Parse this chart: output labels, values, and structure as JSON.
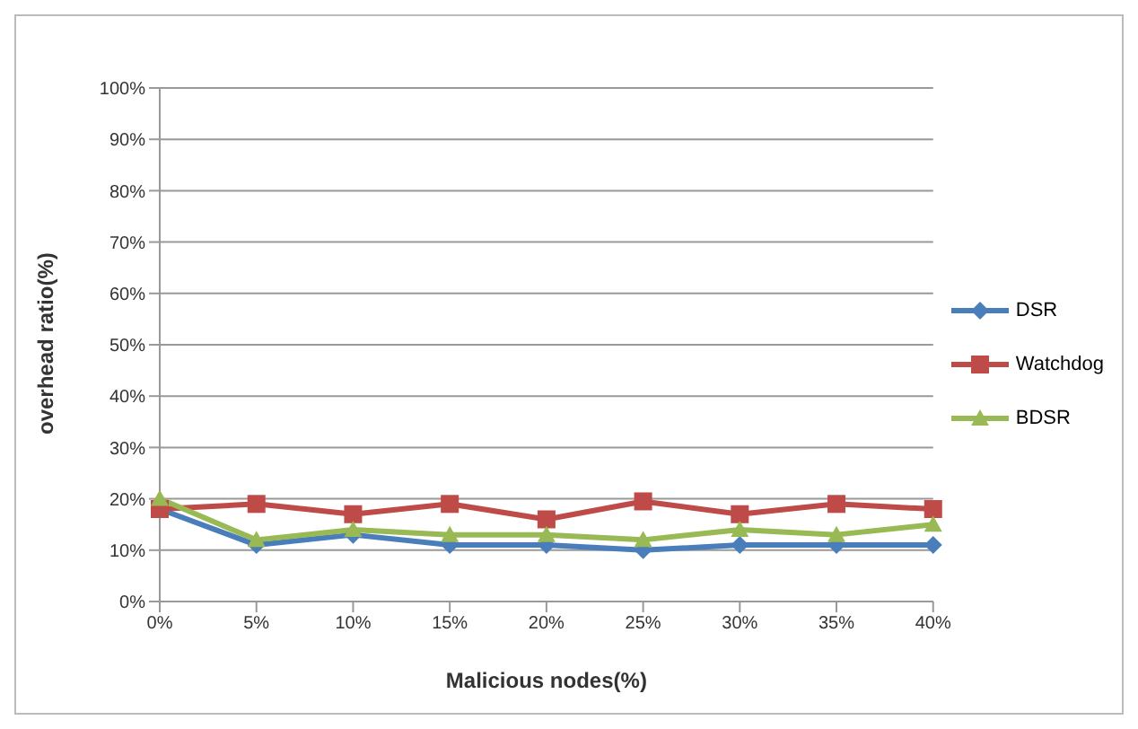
{
  "chart_data": {
    "type": "line",
    "xlabel": "Malicious nodes(%)",
    "ylabel": "overhead ratio(%)",
    "categories": [
      "0%",
      "5%",
      "10%",
      "15%",
      "20%",
      "25%",
      "30%",
      "35%",
      "40%"
    ],
    "series": [
      {
        "name": "DSR",
        "color": "#4a7ebb",
        "marker": "diamond",
        "values": [
          18,
          11,
          13,
          11,
          11,
          10,
          11,
          11,
          11
        ]
      },
      {
        "name": "Watchdog",
        "color": "#be4b48",
        "marker": "square",
        "values": [
          18,
          19,
          17,
          19,
          16,
          19.5,
          17,
          19,
          18
        ]
      },
      {
        "name": "BDSR",
        "color": "#98b954",
        "marker": "triangle",
        "values": [
          20,
          12,
          14,
          13,
          13,
          12,
          14,
          13,
          15
        ]
      }
    ],
    "ylim": [
      0,
      100
    ],
    "yticks": [
      {
        "value": 0,
        "label": "0%"
      },
      {
        "value": 10,
        "label": "10%"
      },
      {
        "value": 20,
        "label": "20%"
      },
      {
        "value": 30,
        "label": "30%"
      },
      {
        "value": 40,
        "label": "40%"
      },
      {
        "value": 50,
        "label": "50%"
      },
      {
        "value": 60,
        "label": "60%"
      },
      {
        "value": 70,
        "label": "70%"
      },
      {
        "value": 80,
        "label": "80%"
      },
      {
        "value": 90,
        "label": "90%"
      },
      {
        "value": 100,
        "label": "100%"
      }
    ],
    "grid": "y",
    "legend": "right",
    "line_style": "solid"
  }
}
